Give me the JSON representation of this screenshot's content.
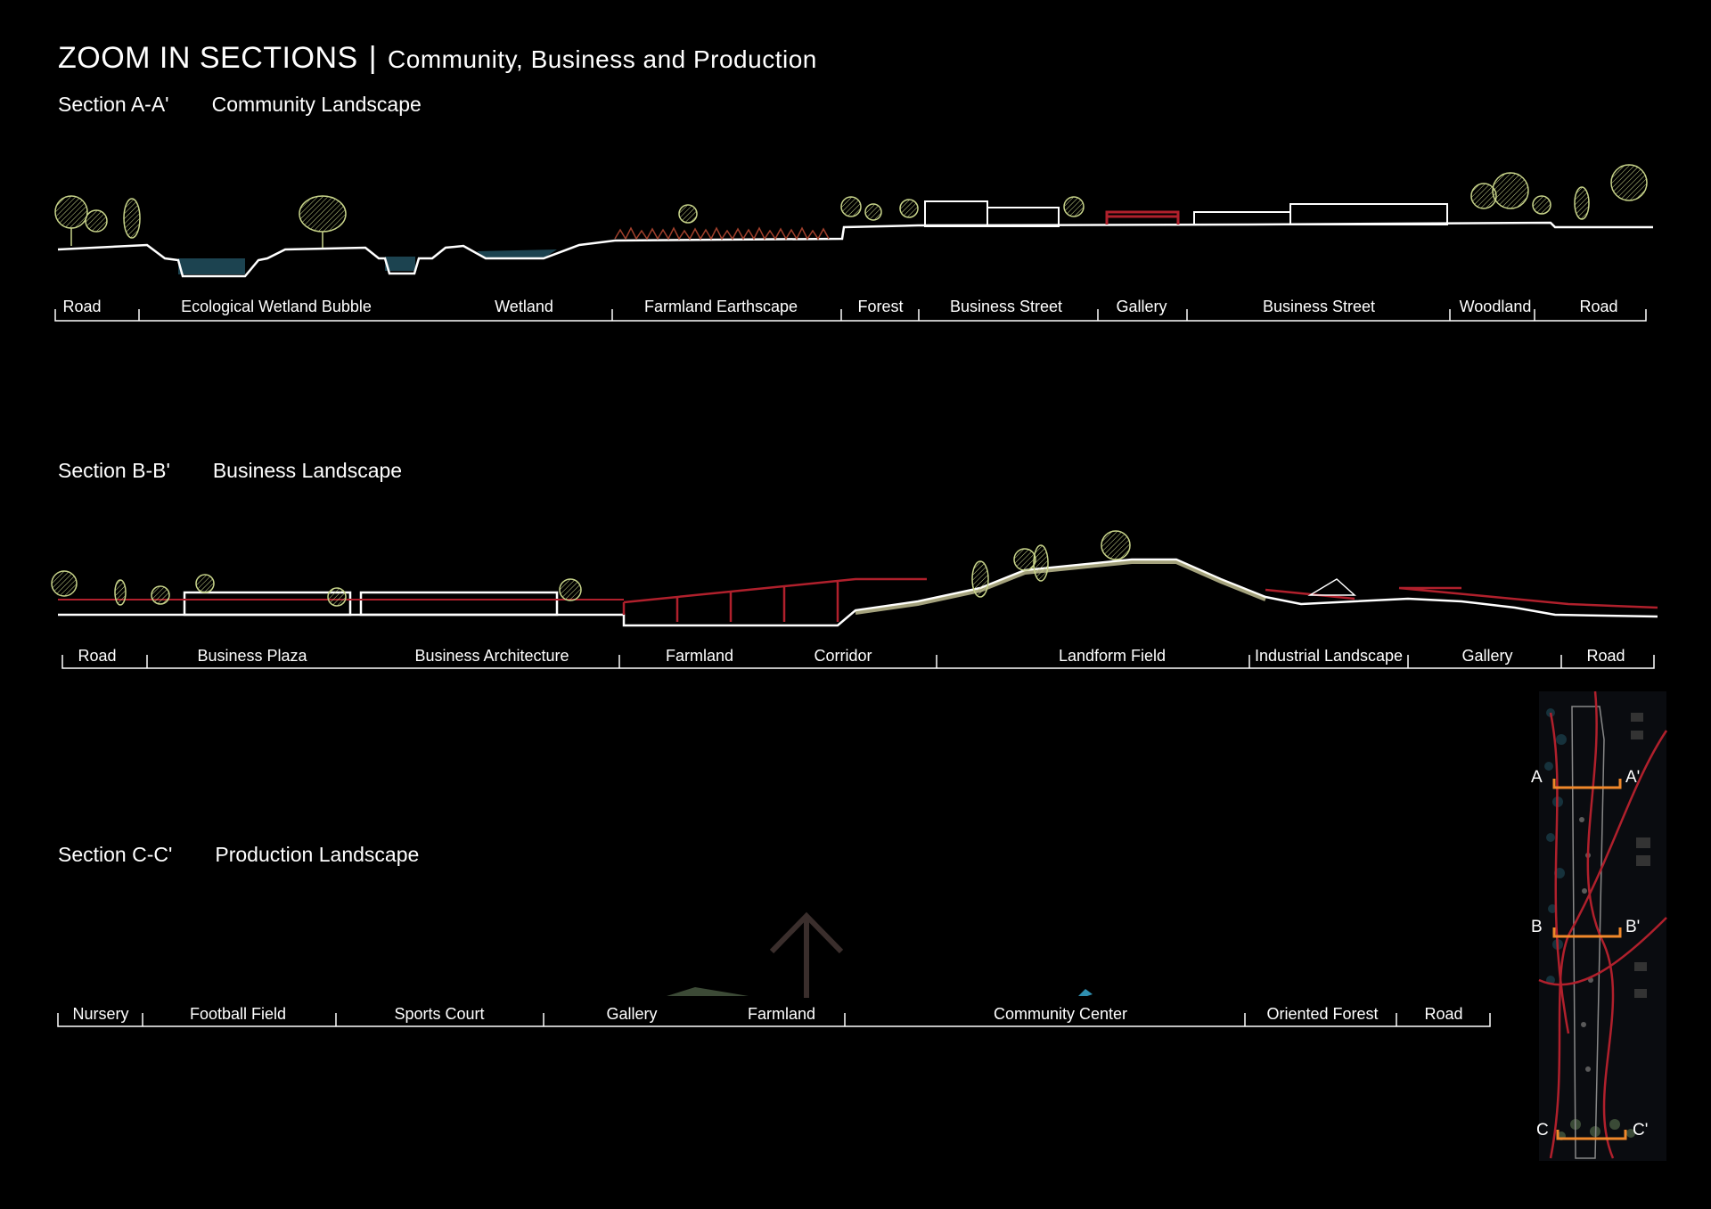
{
  "title": {
    "main": "ZOOM IN SECTIONS",
    "separator": "|",
    "subtitle": "Community, Business and Production"
  },
  "sections": [
    {
      "id": "Section A-A'",
      "name": "Community Landscape",
      "zones": [
        "Road",
        "Ecological Wetland Bubble",
        "Wetland",
        "Farmland Earthscape",
        "Forest",
        "Business Street",
        "Gallery",
        "Business Street",
        "Woodland",
        "Road"
      ]
    },
    {
      "id": "Section B-B'",
      "name": "Business Landscape",
      "zones": [
        "Road",
        "Business Plaza",
        "Business Architecture",
        "Farmland",
        "Corridor",
        "Landform  Field",
        "Industrial Landscape",
        "Gallery",
        "Road"
      ]
    },
    {
      "id": "Section C-C'",
      "name": "Production Landscape",
      "zones": [
        "Nursery",
        "Football Field",
        "Sports Court",
        "Gallery",
        "Farmland",
        "Community  Center",
        "Oriented Forest",
        "Road"
      ]
    }
  ],
  "key_map": {
    "markers": [
      {
        "left": "A",
        "right": "A'"
      },
      {
        "left": "B",
        "right": "B'"
      },
      {
        "left": "C",
        "right": "C'"
      }
    ]
  },
  "colors": {
    "background": "#000000",
    "line": "#ffffff",
    "accent_red": "#b0202c",
    "vegetation": "#c8d48a",
    "water": "#2f6f86",
    "marker_orange": "#f0882a"
  },
  "icons": [
    "tree-icon",
    "north-arrow-icon",
    "key-map"
  ]
}
